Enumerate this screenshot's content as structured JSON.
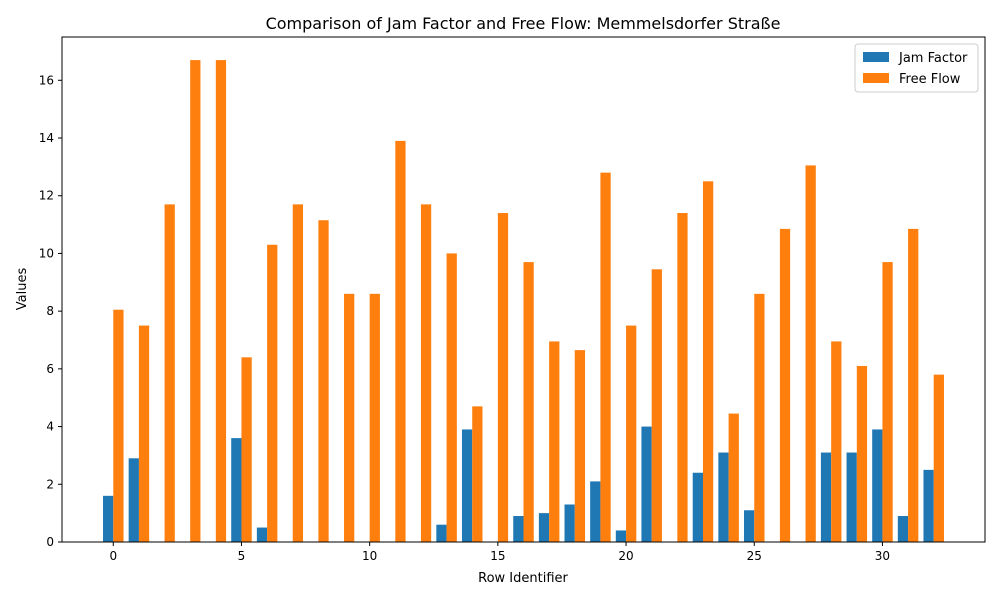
{
  "chart_data": {
    "type": "bar",
    "title": "Comparison of Jam Factor and Free Flow: Memmelsdorfer Straße",
    "xlabel": "Row Identifier",
    "ylabel": "Values",
    "x": [
      0,
      1,
      2,
      3,
      4,
      5,
      6,
      7,
      8,
      9,
      10,
      11,
      12,
      13,
      14,
      15,
      16,
      17,
      18,
      19,
      20,
      21,
      22,
      23,
      24,
      25,
      26,
      27,
      28,
      29,
      30,
      31,
      32
    ],
    "xlim": [
      -2,
      34
    ],
    "ylim": [
      0,
      17.5
    ],
    "x_ticks": [
      0,
      5,
      10,
      15,
      20,
      25,
      30
    ],
    "y_ticks": [
      0,
      2,
      4,
      6,
      8,
      10,
      12,
      14,
      16
    ],
    "legend_position": "top-right",
    "grid": false,
    "series": [
      {
        "name": "Jam Factor",
        "color": "#1f77b4",
        "values": [
          1.6,
          2.9,
          0,
          0,
          0,
          3.6,
          0.5,
          0,
          0,
          0,
          0,
          0,
          0,
          0.6,
          3.9,
          0,
          0.9,
          1.0,
          1.3,
          2.1,
          0.4,
          4.0,
          0,
          2.4,
          3.1,
          1.1,
          0,
          0,
          3.1,
          3.1,
          3.9,
          0.9,
          2.5
        ]
      },
      {
        "name": "Free Flow",
        "color": "#ff7f0e",
        "values": [
          8.05,
          7.5,
          11.7,
          16.7,
          16.7,
          6.4,
          10.3,
          11.7,
          11.15,
          8.6,
          8.6,
          13.9,
          11.7,
          10.0,
          4.7,
          11.4,
          9.7,
          6.95,
          6.65,
          12.8,
          7.5,
          9.45,
          11.4,
          12.5,
          4.45,
          8.6,
          10.85,
          13.05,
          6.95,
          6.1,
          9.7,
          10.85,
          5.8
        ]
      }
    ]
  }
}
